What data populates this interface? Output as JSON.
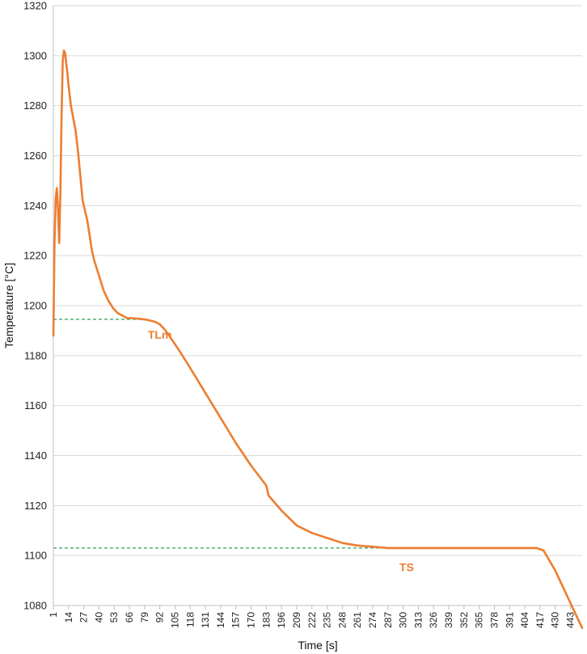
{
  "chart_data": {
    "type": "line",
    "title": "",
    "xlabel": "Time [s]",
    "ylabel": "Temperature [°C]",
    "ylim": [
      1080,
      1320
    ],
    "xlim": [
      1,
      453
    ],
    "y_ticks": [
      "1080",
      "1100",
      "1120",
      "1140",
      "1160",
      "1180",
      "1200",
      "1220",
      "1240",
      "1260",
      "1280",
      "1300",
      "1320"
    ],
    "x_ticks": [
      "1",
      "14",
      "27",
      "40",
      "53",
      "66",
      "79",
      "92",
      "105",
      "118",
      "131",
      "144",
      "157",
      "170",
      "183",
      "196",
      "209",
      "222",
      "235",
      "248",
      "261",
      "274",
      "287",
      "300",
      "313",
      "326",
      "339",
      "352",
      "365",
      "378",
      "391",
      "404",
      "417",
      "430",
      "443"
    ],
    "grid": "horizontal",
    "series": [
      {
        "color": "#ED7D31",
        "x": [
          1,
          2,
          3,
          4,
          5,
          6,
          7,
          8,
          9,
          10,
          11,
          12,
          13,
          14,
          16,
          18,
          20,
          22,
          24,
          26,
          28,
          30,
          32,
          34,
          36,
          38,
          40,
          44,
          48,
          52,
          56,
          60,
          64,
          68,
          72,
          76,
          80,
          84,
          88,
          92,
          96,
          100,
          105,
          110,
          118,
          131,
          144,
          157,
          170,
          183,
          185,
          196,
          209,
          222,
          235,
          248,
          261,
          274,
          287,
          300,
          313,
          326,
          339,
          352,
          365,
          378,
          391,
          404,
          410,
          414,
          417,
          420,
          430,
          443,
          453
        ],
        "y": [
          1188,
          1225,
          1243,
          1247,
          1238,
          1225,
          1245,
          1275,
          1298,
          1302,
          1301,
          1297,
          1293,
          1288,
          1280,
          1275,
          1270,
          1262,
          1252,
          1242,
          1238,
          1234,
          1228,
          1222,
          1218,
          1215,
          1212,
          1206,
          1202,
          1199,
          1197,
          1196,
          1195,
          1195,
          1194.8,
          1194.6,
          1194.4,
          1194,
          1193.5,
          1192.5,
          1190.5,
          1188,
          1184.5,
          1181,
          1175,
          1165,
          1155,
          1145,
          1136,
          1128,
          1124,
          1118,
          1112,
          1109,
          1107,
          1105,
          1104,
          1103.5,
          1103,
          1103,
          1103,
          1103,
          1103,
          1103,
          1103,
          1103,
          1103,
          1103,
          1103,
          1103,
          1102.5,
          1102,
          1094,
          1081,
          1071
        ]
      }
    ],
    "reference_lines": [
      {
        "y": 1194.5,
        "x_range": [
          1,
          72
        ],
        "color": "#2E9E5B"
      },
      {
        "y": 1103,
        "x_range": [
          1,
          300
        ],
        "color": "#2E9E5B"
      }
    ],
    "annotations": [
      {
        "text": "TLm",
        "x": 92,
        "y": 1190,
        "color": "#ED7D31"
      },
      {
        "text": "TS",
        "x": 303,
        "y": 1097,
        "color": "#ED7D31"
      }
    ]
  }
}
